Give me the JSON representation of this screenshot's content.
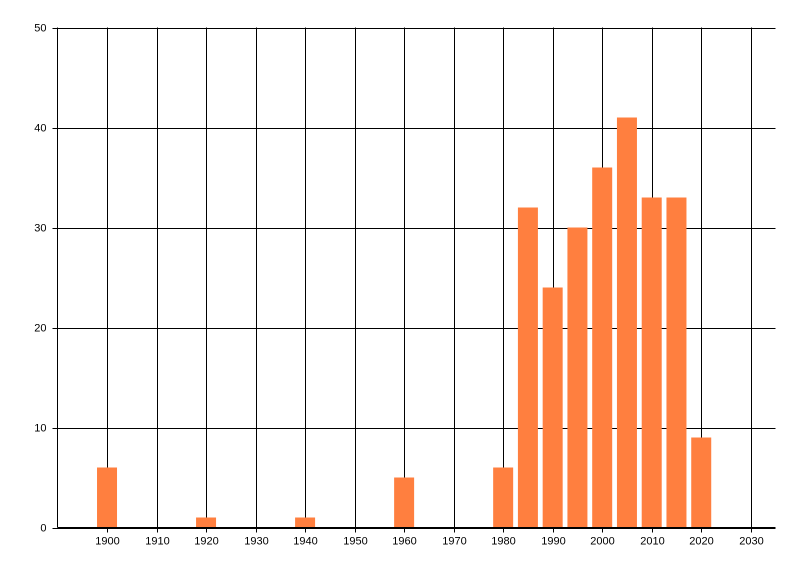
{
  "chart_data": {
    "type": "bar",
    "x": [
      1900,
      1920,
      1940,
      1960,
      1980,
      1985,
      1990,
      1995,
      2000,
      2005,
      2010,
      2015,
      2020
    ],
    "values": [
      6,
      1,
      1,
      5,
      6,
      32,
      24,
      30,
      36,
      41,
      33,
      33,
      9
    ],
    "color": "#ff7f3f",
    "xlim": [
      1890,
      2035
    ],
    "xticks": [
      1900,
      1910,
      1920,
      1930,
      1940,
      1950,
      1960,
      1970,
      1980,
      1990,
      2000,
      2010,
      2020,
      2030
    ],
    "ylim": [
      0,
      50
    ],
    "yticks": [
      0,
      10,
      20,
      30,
      40,
      50
    ],
    "grid": true
  }
}
